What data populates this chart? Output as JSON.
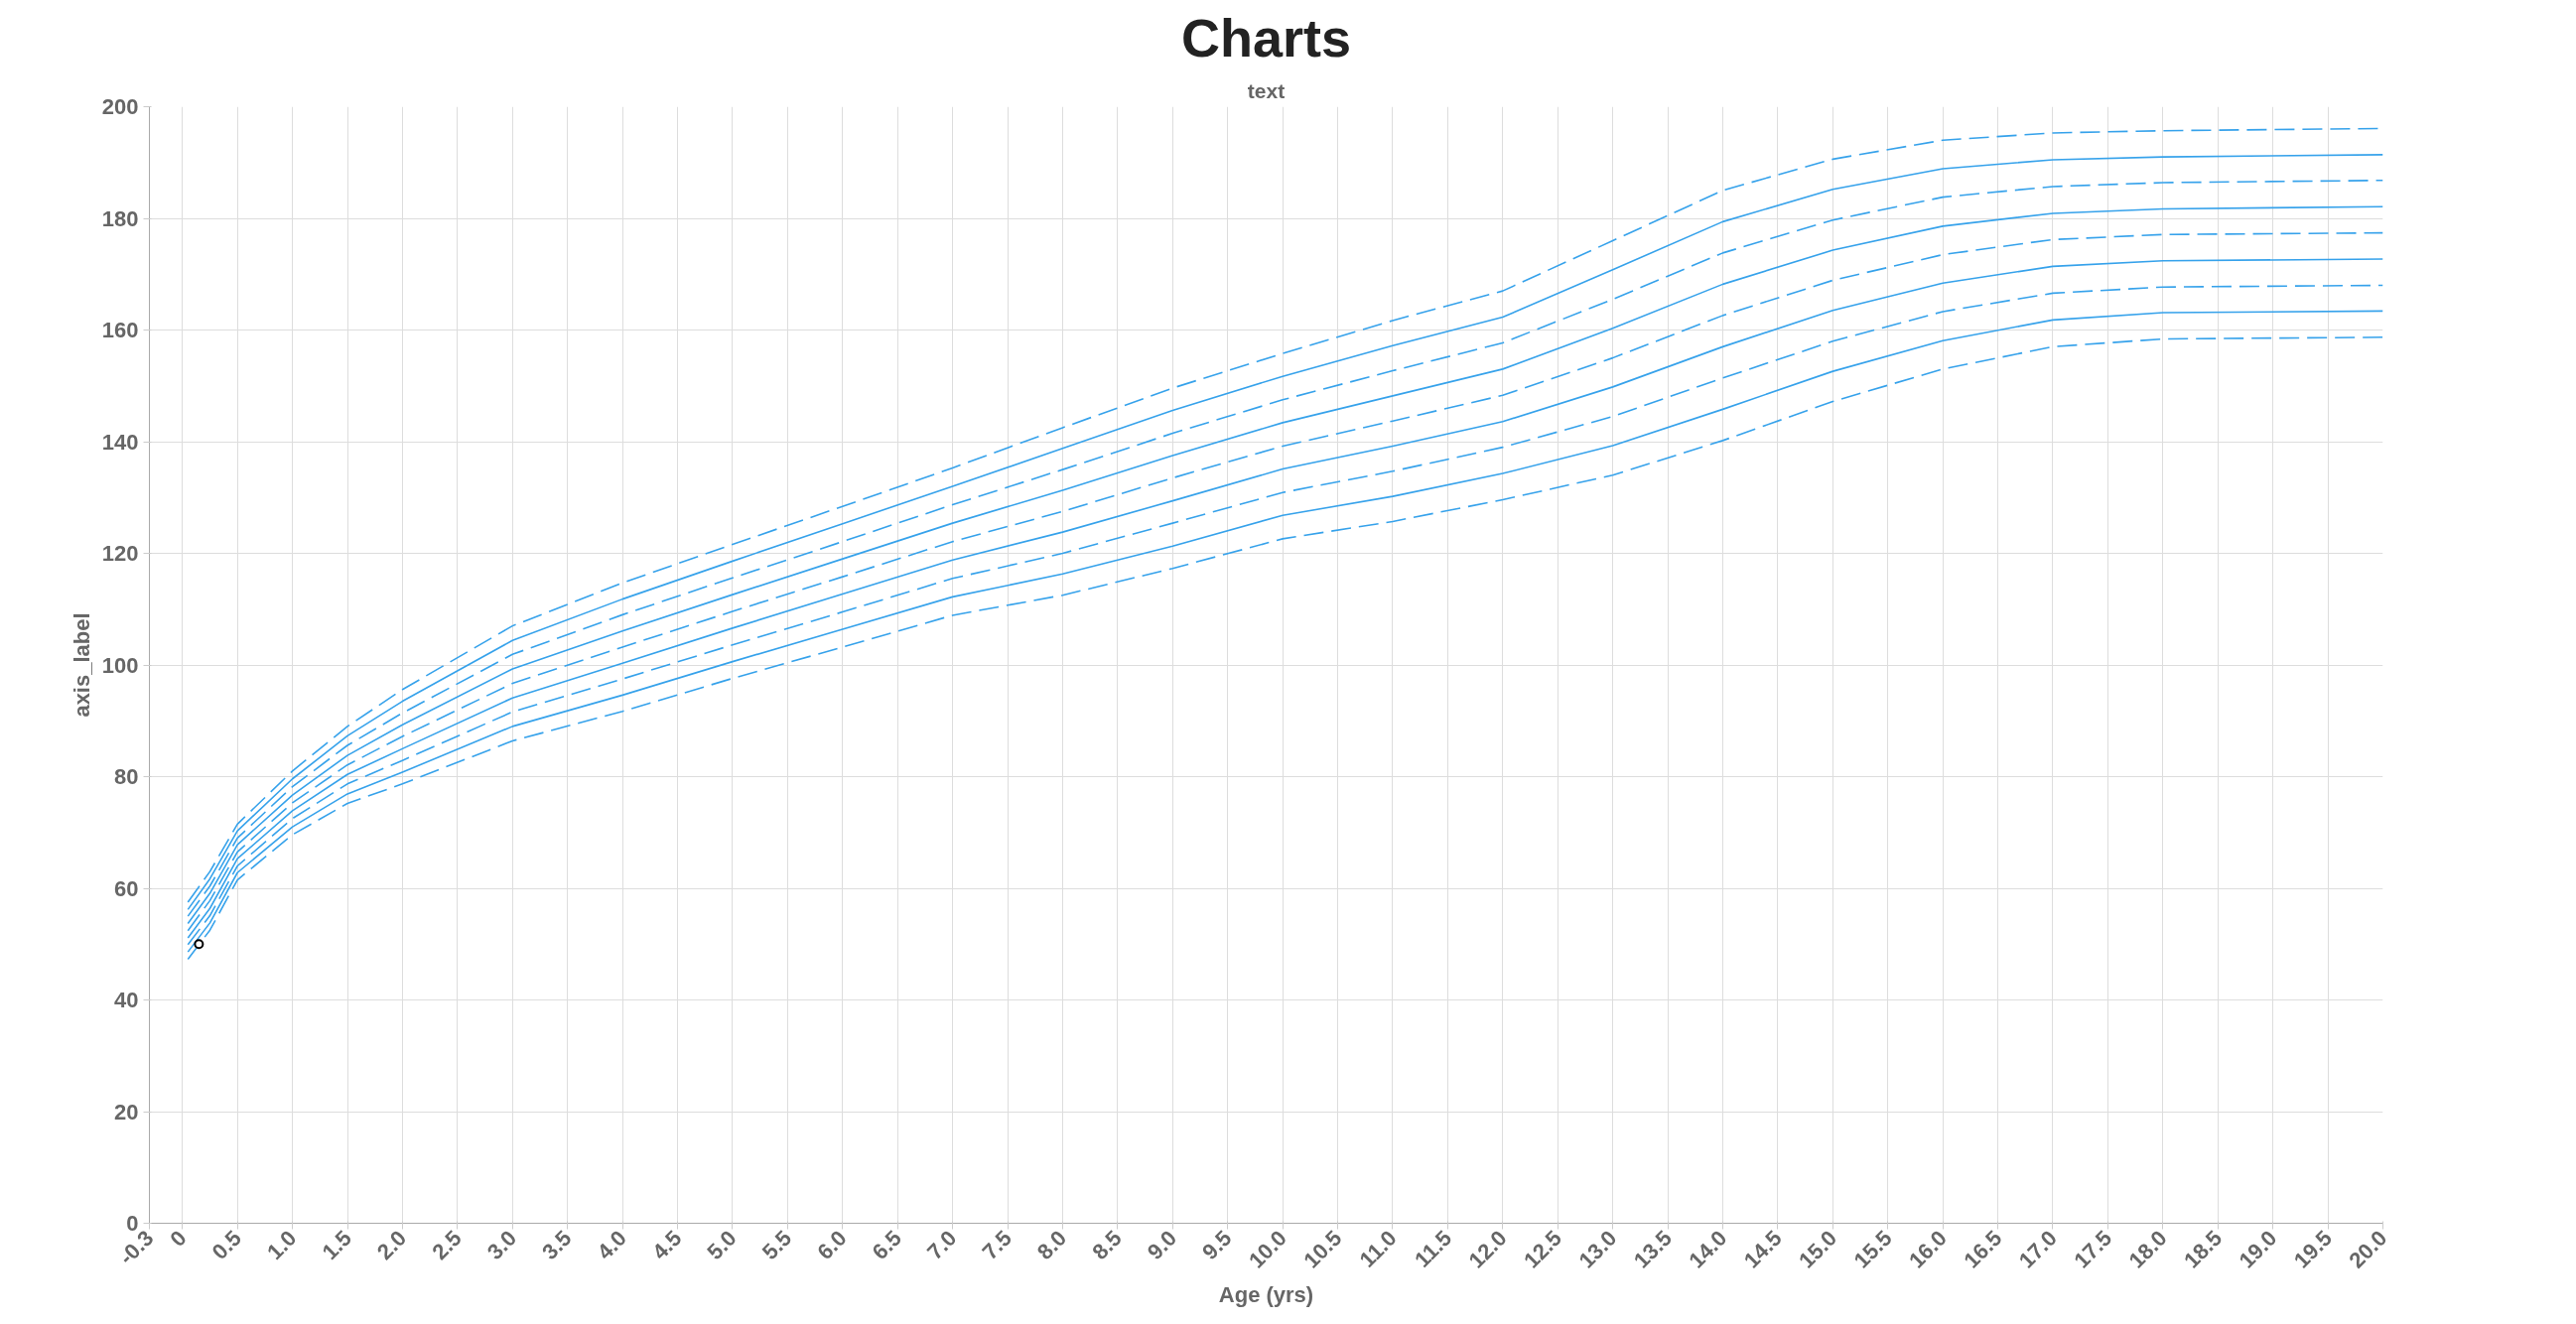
{
  "chart_data": {
    "type": "line",
    "title": "Charts",
    "subtitle": "text",
    "xlabel": "Age (yrs)",
    "ylabel": "axis_label",
    "x": [
      0.05,
      0.25,
      0.5,
      1,
      1.5,
      2,
      3,
      4,
      5,
      6,
      7,
      8,
      9,
      10,
      11,
      12,
      13,
      14,
      15,
      16,
      17,
      18,
      20
    ],
    "series": [
      {
        "color": "#36a2eb",
        "line_style": "dashed",
        "values": [
          57.5,
          63.0,
          71.5,
          81.0,
          89.0,
          95.6,
          107.0,
          114.7,
          121.6,
          128.4,
          135.3,
          142.5,
          149.6,
          155.8,
          161.7,
          167.0,
          176.0,
          185.0,
          190.6,
          194.0,
          195.3,
          195.7,
          196.1
        ]
      },
      {
        "color": "#36a2eb",
        "line_style": "solid",
        "values": [
          56.2,
          61.7,
          70.3,
          79.6,
          87.3,
          93.5,
          104.4,
          111.8,
          118.6,
          125.3,
          132.0,
          138.8,
          145.6,
          151.7,
          157.2,
          162.3,
          170.8,
          179.4,
          185.2,
          188.9,
          190.5,
          191.0,
          191.4
        ]
      },
      {
        "color": "#36a2eb",
        "line_style": "dashed",
        "values": [
          55.0,
          60.4,
          69.0,
          78.2,
          85.6,
          91.4,
          101.9,
          109.0,
          115.6,
          122.1,
          128.7,
          135.0,
          141.5,
          147.5,
          152.7,
          157.7,
          165.5,
          173.8,
          179.7,
          183.8,
          185.7,
          186.4,
          186.8
        ]
      },
      {
        "color": "#36a2eb",
        "line_style": "solid",
        "values": [
          53.7,
          59.1,
          67.8,
          76.7,
          83.8,
          89.3,
          99.3,
          106.1,
          112.6,
          119.0,
          125.4,
          131.3,
          137.5,
          143.4,
          148.2,
          153.0,
          160.3,
          168.2,
          174.3,
          178.6,
          180.9,
          181.7,
          182.1
        ]
      },
      {
        "color": "#36a2eb",
        "line_style": "dashed",
        "values": [
          52.4,
          57.8,
          66.5,
          75.3,
          82.1,
          87.2,
          96.7,
          103.2,
          109.6,
          115.8,
          122.1,
          127.5,
          133.5,
          139.2,
          143.7,
          148.3,
          155.0,
          162.6,
          168.9,
          173.5,
          176.2,
          177.1,
          177.4
        ]
      },
      {
        "color": "#36a2eb",
        "line_style": "solid",
        "values": [
          51.1,
          56.4,
          65.3,
          73.9,
          80.4,
          85.0,
          94.1,
          100.3,
          106.6,
          112.7,
          118.8,
          123.8,
          129.4,
          135.1,
          139.2,
          143.6,
          149.8,
          157.0,
          163.5,
          168.4,
          171.4,
          172.4,
          172.7
        ]
      },
      {
        "color": "#36a2eb",
        "line_style": "dashed",
        "values": [
          49.9,
          55.1,
          64.0,
          72.5,
          78.7,
          82.9,
          91.6,
          97.5,
          103.6,
          109.5,
          115.5,
          120.0,
          125.4,
          130.9,
          134.7,
          139.0,
          144.5,
          151.4,
          158.0,
          163.3,
          166.6,
          167.7,
          168.0
        ]
      },
      {
        "color": "#36a2eb",
        "line_style": "solid",
        "values": [
          48.6,
          53.8,
          62.8,
          71.0,
          76.9,
          80.8,
          89.0,
          94.6,
          100.6,
          106.4,
          112.2,
          116.3,
          121.3,
          126.8,
          130.2,
          134.3,
          139.3,
          145.8,
          152.6,
          158.1,
          161.8,
          163.1,
          163.4
        ]
      },
      {
        "color": "#36a2eb",
        "line_style": "dashed",
        "values": [
          47.3,
          52.5,
          61.5,
          69.6,
          75.2,
          78.7,
          86.4,
          91.7,
          97.6,
          103.2,
          108.9,
          112.5,
          117.3,
          122.6,
          125.7,
          129.6,
          134.0,
          140.2,
          147.2,
          153.0,
          157.0,
          158.4,
          158.7
        ]
      },
      {
        "type": "scatter",
        "color": "#000000",
        "marker": "circle",
        "x": [
          0.15
        ],
        "values": [
          50
        ]
      }
    ],
    "xlim": [
      -0.3,
      20
    ],
    "ylim": [
      0,
      200
    ],
    "xticks": [
      -0.3,
      0,
      0.5,
      {
        "value": 1,
        "label": "1.0"
      },
      1.5,
      {
        "value": 2,
        "label": "2.0"
      },
      2.5,
      {
        "value": 3,
        "label": "3.0"
      },
      3.5,
      {
        "value": 4,
        "label": "4.0"
      },
      4.5,
      {
        "value": 5,
        "label": "5.0"
      },
      5.5,
      {
        "value": 6,
        "label": "6.0"
      },
      6.5,
      {
        "value": 7,
        "label": "7.0"
      },
      7.5,
      {
        "value": 8,
        "label": "8.0"
      },
      8.5,
      {
        "value": 9,
        "label": "9.0"
      },
      9.5,
      {
        "value": 10,
        "label": "10.0"
      },
      10.5,
      {
        "value": 11,
        "label": "11.0"
      },
      11.5,
      {
        "value": 12,
        "label": "12.0"
      },
      12.5,
      {
        "value": 13,
        "label": "13.0"
      },
      13.5,
      {
        "value": 14,
        "label": "14.0"
      },
      14.5,
      {
        "value": 15,
        "label": "15.0"
      },
      15.5,
      {
        "value": 16,
        "label": "16.0"
      },
      16.5,
      {
        "value": 17,
        "label": "17.0"
      },
      17.5,
      {
        "value": 18,
        "label": "18.0"
      },
      18.5,
      {
        "value": 19,
        "label": "19.0"
      },
      19.5,
      {
        "value": 20,
        "label": "20.0"
      }
    ],
    "yticks": [
      0,
      20,
      40,
      60,
      80,
      100,
      120,
      140,
      160,
      180,
      200
    ],
    "grid": true
  }
}
